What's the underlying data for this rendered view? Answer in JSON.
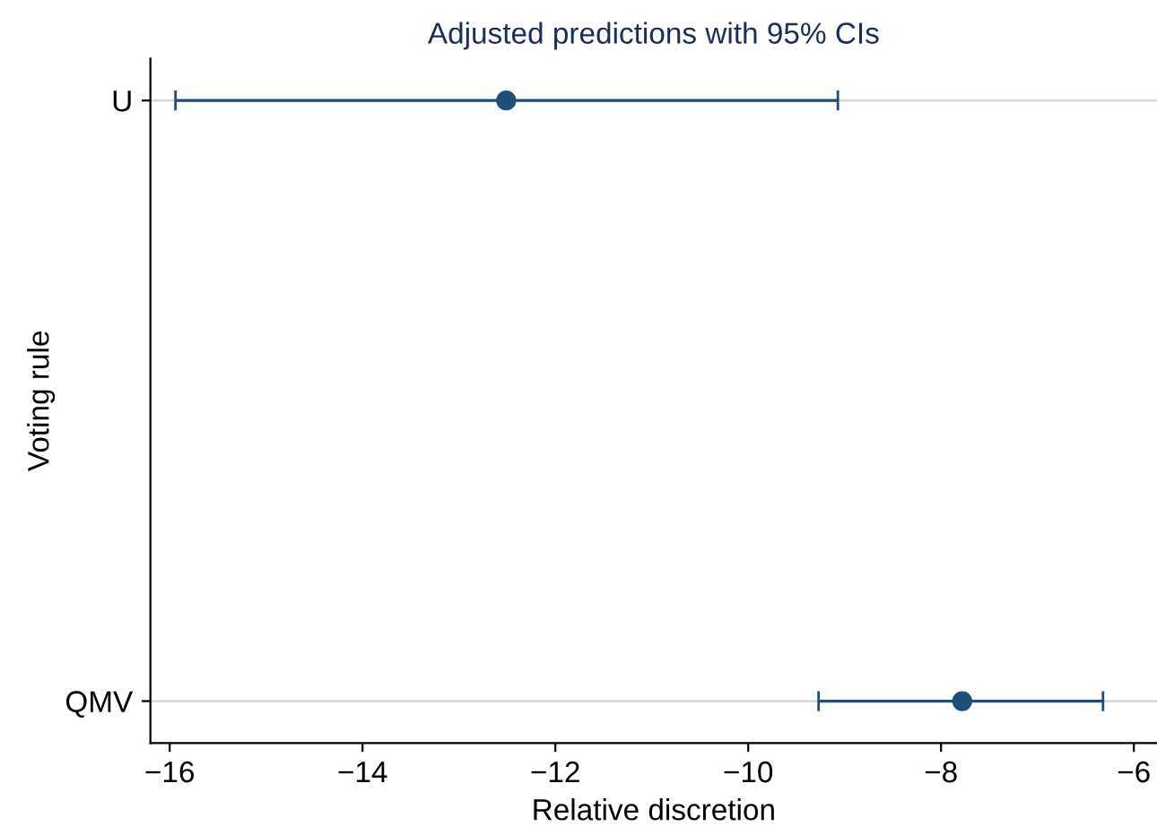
{
  "chart_data": {
    "type": "scatter",
    "orientation": "horizontal",
    "title": "Adjusted predictions with 95% CIs",
    "xlabel": "Relative discretion",
    "ylabel": "Voting rule",
    "categories": [
      "U",
      "QMV"
    ],
    "values": [
      -12.51,
      -7.78
    ],
    "errors": [
      [
        -15.94,
        -9.07
      ],
      [
        -9.27,
        -6.32
      ]
    ],
    "color": "#1f4e79",
    "marker": "circle",
    "grid": "y",
    "xlim": [
      -16.2,
      -5.76
    ],
    "xticks": [
      {
        "value": -16,
        "label": "−16"
      },
      {
        "value": -14,
        "label": "−14"
      },
      {
        "value": -12,
        "label": "−12"
      },
      {
        "value": -10,
        "label": "−10"
      },
      {
        "value": -8,
        "label": "−8"
      },
      {
        "value": -6,
        "label": "−6"
      }
    ]
  }
}
